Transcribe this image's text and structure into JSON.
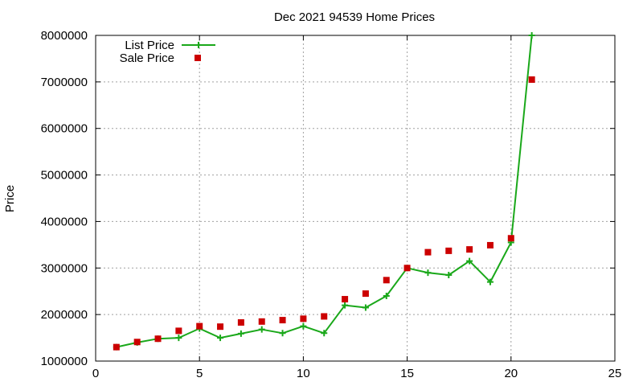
{
  "chart_data": {
    "type": "line",
    "title": "Dec 2021 94539 Home Prices",
    "xlabel": "",
    "ylabel": "Price",
    "xlim": [
      0,
      25
    ],
    "ylim": [
      1000000,
      8000000
    ],
    "xticks": [
      0,
      5,
      10,
      15,
      20,
      25
    ],
    "yticks": [
      1000000,
      2000000,
      3000000,
      4000000,
      5000000,
      6000000,
      7000000,
      8000000
    ],
    "grid": true,
    "legend_position": "top-left",
    "series": [
      {
        "name": "List Price",
        "style": "line-plus",
        "color": "#1aa81a",
        "x": [
          1,
          2,
          3,
          4,
          5,
          6,
          7,
          8,
          9,
          10,
          11,
          12,
          13,
          14,
          15,
          16,
          17,
          18,
          19,
          20,
          21
        ],
        "y": [
          1300000,
          1400000,
          1480000,
          1500000,
          1700000,
          1500000,
          1590000,
          1680000,
          1600000,
          1750000,
          1600000,
          2200000,
          2150000,
          2400000,
          3000000,
          2900000,
          2850000,
          3150000,
          2700000,
          3550000,
          8000000
        ]
      },
      {
        "name": "Sale Price",
        "style": "square-points",
        "color": "#cc0000",
        "x": [
          1,
          2,
          3,
          4,
          5,
          6,
          7,
          8,
          9,
          10,
          11,
          12,
          13,
          14,
          15,
          16,
          17,
          18,
          19,
          20,
          21
        ],
        "y": [
          1300000,
          1410000,
          1480000,
          1650000,
          1750000,
          1740000,
          1830000,
          1850000,
          1880000,
          1910000,
          1960000,
          2330000,
          2450000,
          2740000,
          3000000,
          3340000,
          3370000,
          3400000,
          3490000,
          3640000,
          7050000
        ]
      }
    ]
  }
}
